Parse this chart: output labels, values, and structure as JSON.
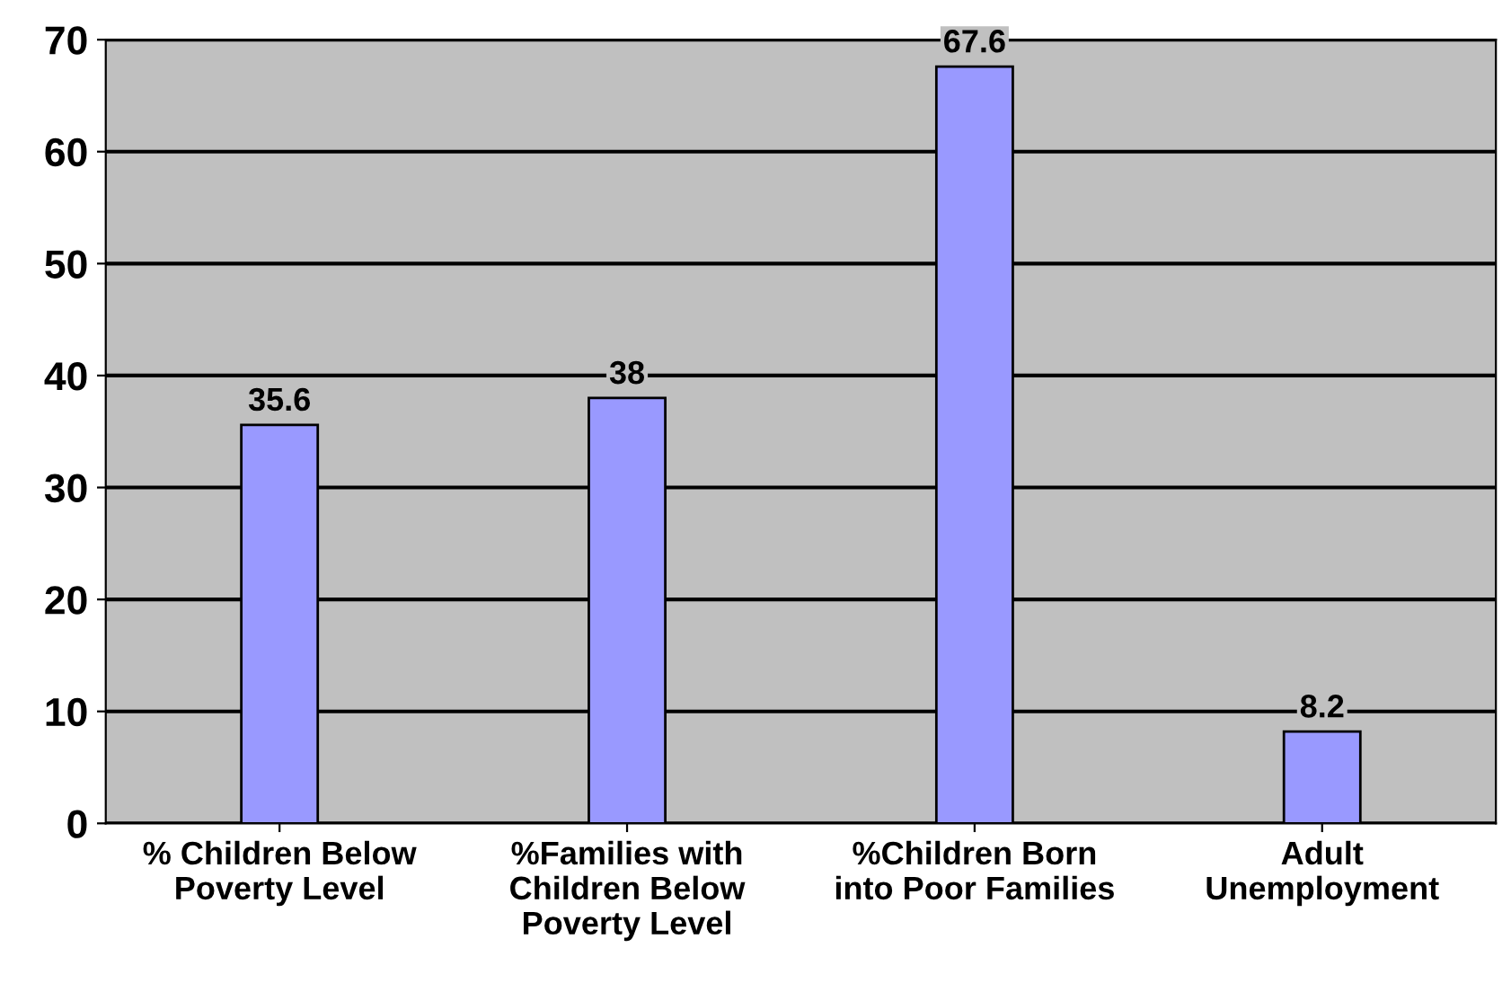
{
  "chart_data": {
    "type": "bar",
    "categories": [
      "% Children Below\nPoverty Level",
      "%Families with\nChildren Below\nPoverty Level",
      "%Children Born\ninto Poor Families",
      "Adult\nUnemployment"
    ],
    "values": [
      35.6,
      38,
      67.6,
      8.2
    ],
    "color": "#9999ff",
    "ylim": [
      0,
      70
    ],
    "yticks": [
      0,
      10,
      20,
      30,
      40,
      50,
      60,
      70
    ],
    "grid": "y",
    "data_labels": true
  }
}
